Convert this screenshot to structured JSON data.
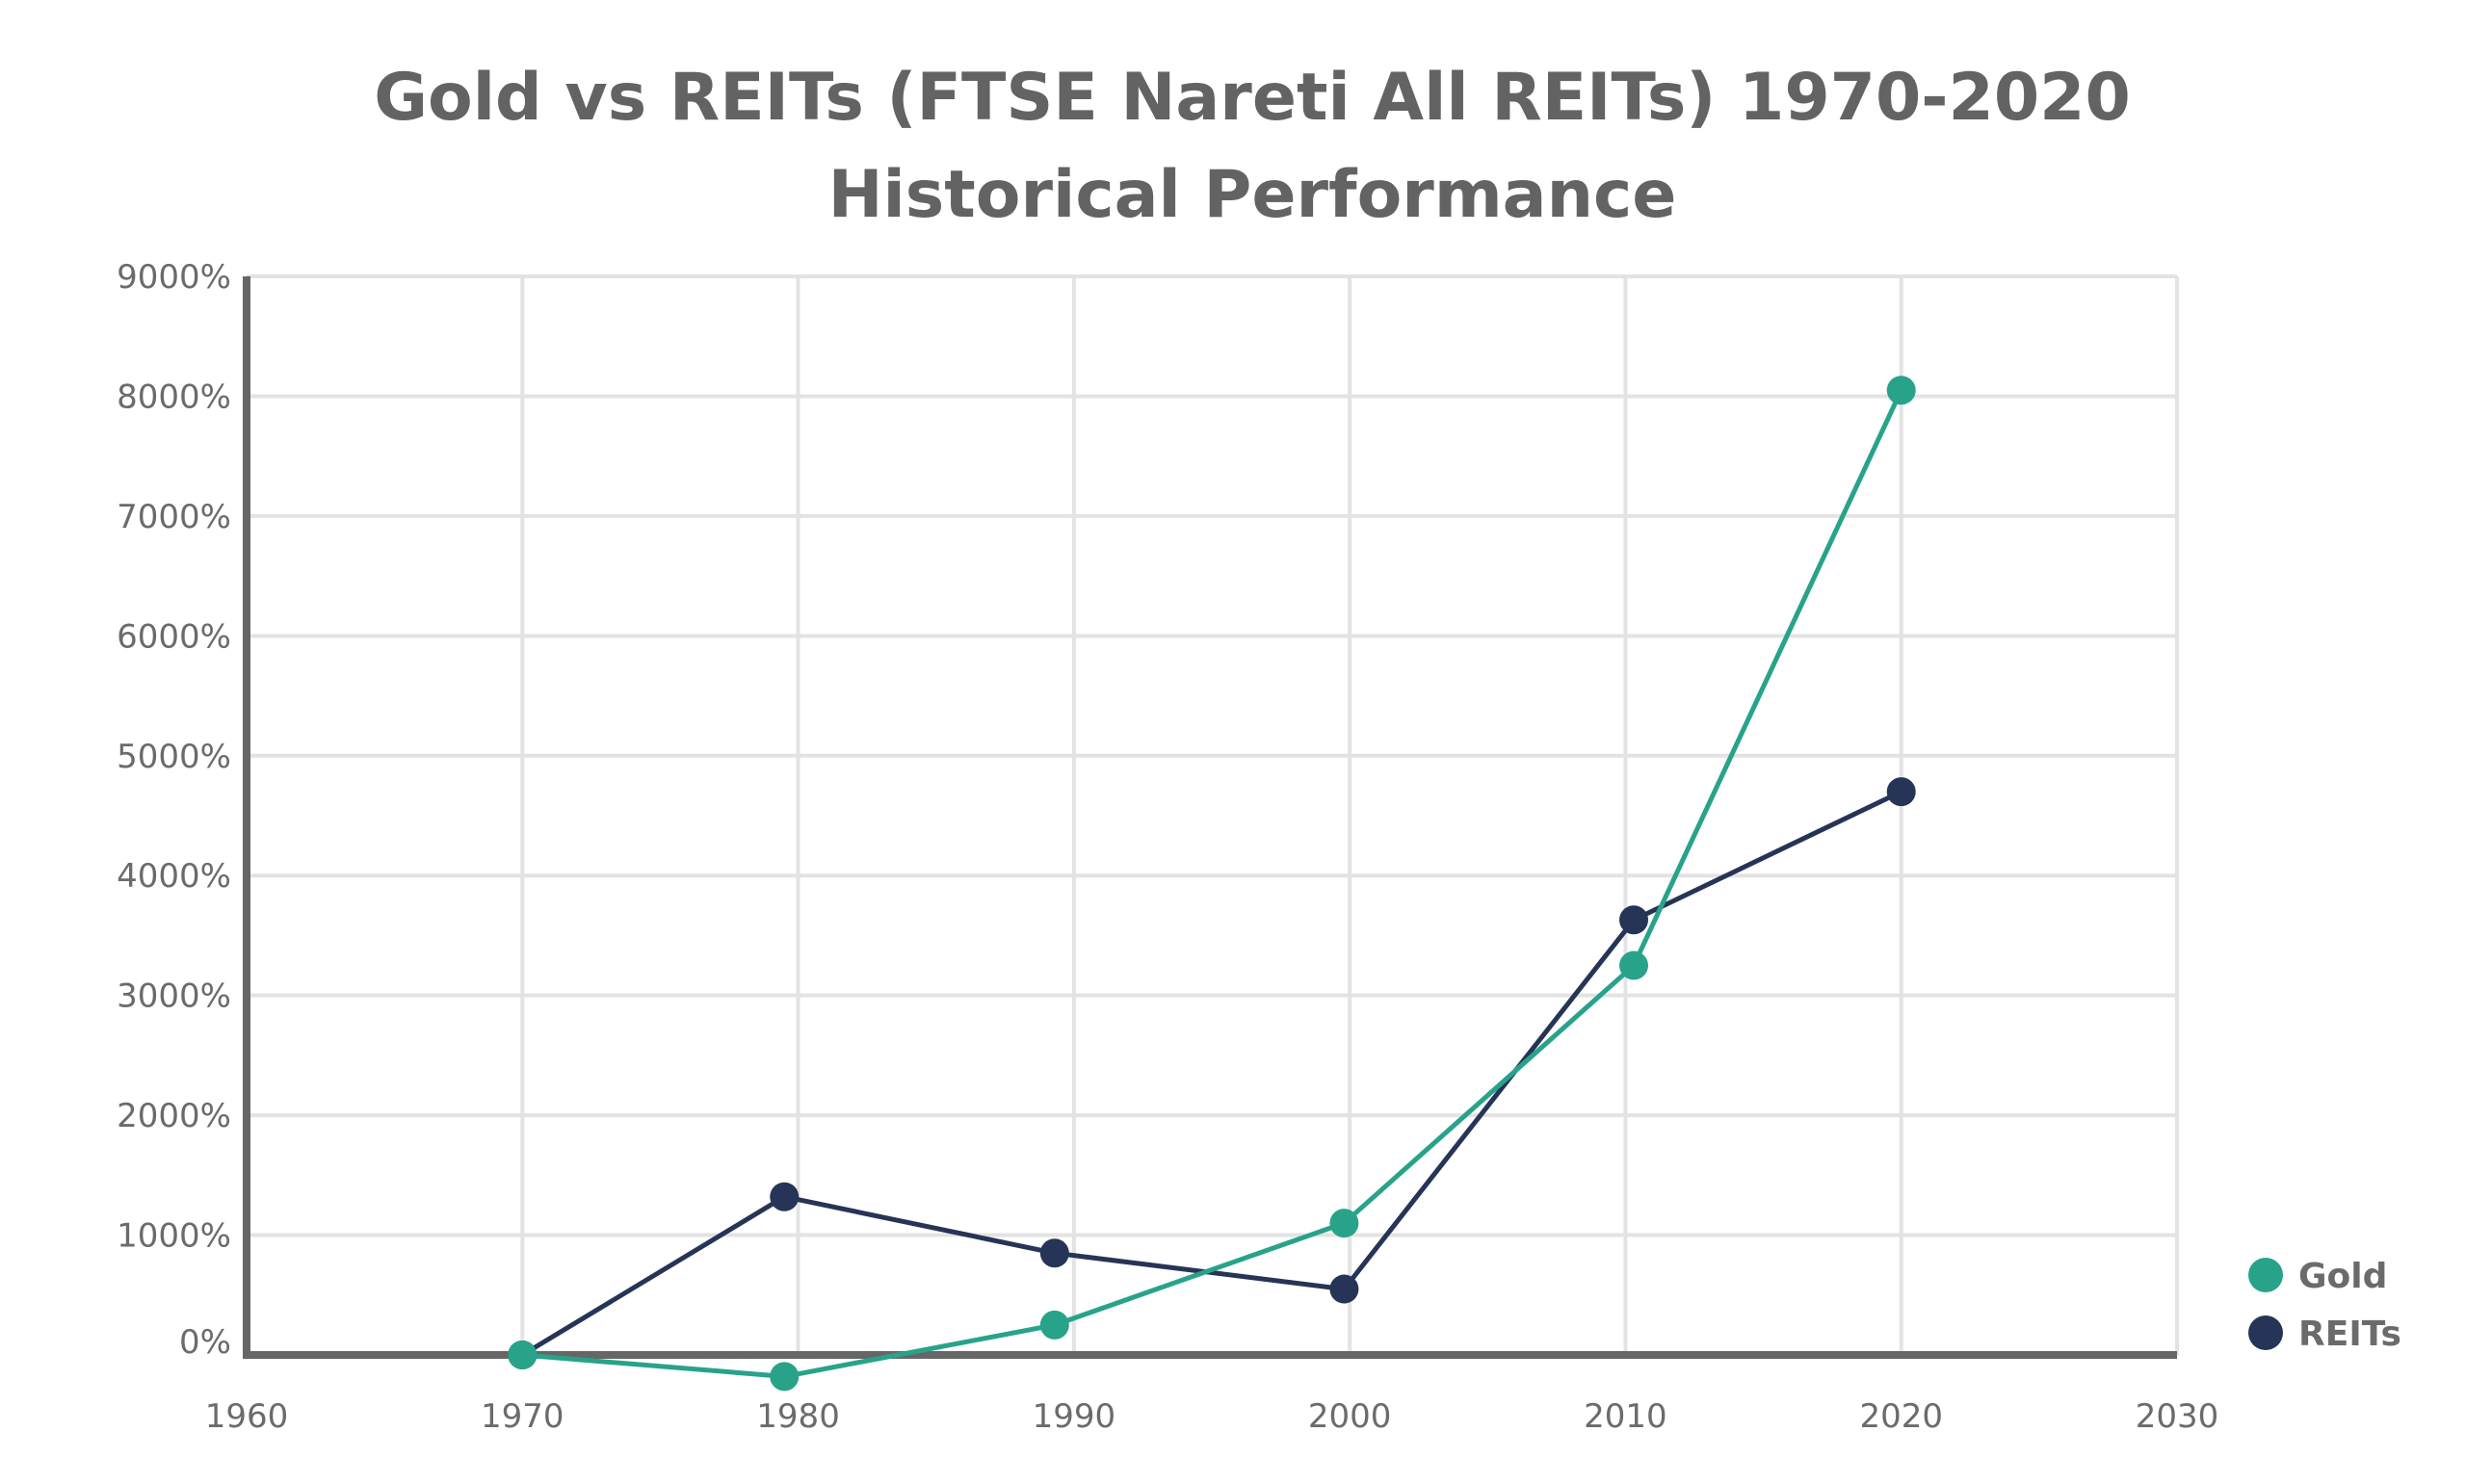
{
  "colors": {
    "gold": "#28a38a",
    "reits": "#263457",
    "axis": "#666666",
    "grid": "#e3e3e3",
    "text": "#636363"
  },
  "chart_data": {
    "type": "line",
    "title": "Gold vs REITs (FTSE Nareti All REITs) 1970-2020",
    "subtitle": "Historical Performance",
    "xlabel": "",
    "ylabel": "",
    "xlim": [
      1960,
      2030
    ],
    "ylim": [
      0,
      9000
    ],
    "x_ticks": [
      "1960",
      "1970",
      "1980",
      "1990",
      "2000",
      "2010",
      "2020",
      "2030"
    ],
    "y_ticks": [
      "0%",
      "1000%",
      "2000%",
      "3000%",
      "4000%",
      "5000%",
      "6000%",
      "7000%",
      "8000%",
      "9000%"
    ],
    "grid": true,
    "legend_position": "bottom-right",
    "series": [
      {
        "name": "Gold",
        "color": "#28a38a",
        "x": [
          1970,
          1979.5,
          1989.3,
          1999.8,
          2010.3,
          2020
        ],
        "y": [
          0,
          -180,
          250,
          1100,
          3250,
          8050
        ]
      },
      {
        "name": "REITs",
        "color": "#263457",
        "x": [
          1970,
          1979.5,
          1989.3,
          1999.8,
          2010.3,
          2020
        ],
        "y": [
          0,
          1320,
          850,
          550,
          3630,
          4700
        ]
      }
    ]
  }
}
